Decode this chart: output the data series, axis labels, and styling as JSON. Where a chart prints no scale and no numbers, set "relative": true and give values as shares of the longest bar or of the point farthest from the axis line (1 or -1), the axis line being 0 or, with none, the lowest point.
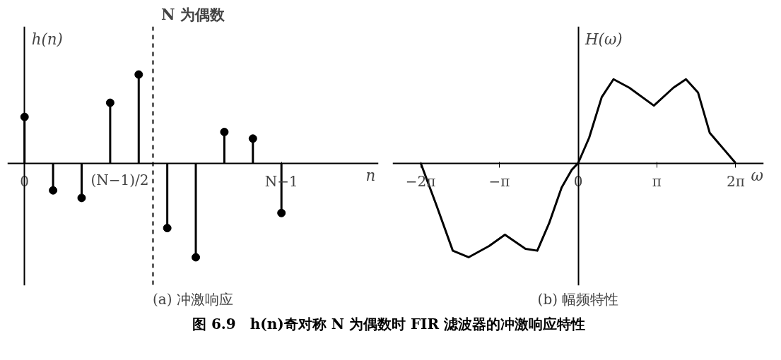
{
  "chart_data": [
    {
      "type": "lollipop",
      "title": "N 为偶数",
      "subtitle": "(a) 冲激响应",
      "xlabel": "n",
      "ylabel": "h(n)",
      "relative": true,
      "color": "#000000",
      "marker": "circle",
      "categories": [
        "0",
        null,
        null,
        null,
        null,
        null,
        null,
        null,
        null,
        "N−1"
      ],
      "values": [
        0.49,
        -0.29,
        -0.37,
        0.64,
        0.94,
        -0.69,
        -1,
        0.33,
        0.26,
        -0.53
      ],
      "annotations": [
        "(N−1)/2"
      ]
    },
    {
      "type": "line",
      "subtitle": "(b) 幅频特性",
      "xlabel": "ω",
      "ylabel": "H(ω)",
      "relative": true,
      "color": "#000000",
      "line_style": "solid",
      "x": [
        -6.28,
        -5.65,
        -5,
        -4.37,
        -3.55,
        -2.92,
        -2.1,
        -1.63,
        -1.16,
        -0.66,
        -0.25,
        0,
        0.44,
        0.94,
        1.41,
        2.04,
        3.02,
        3.8,
        4.3,
        4.78,
        5.25,
        6.28
      ],
      "values": [
        0,
        -0.45,
        -0.93,
        -1,
        -0.88,
        -0.76,
        -0.91,
        -0.93,
        -0.64,
        -0.26,
        -0.07,
        0,
        0.27,
        0.7,
        0.89,
        0.8,
        0.61,
        0.8,
        0.89,
        0.75,
        0.32,
        0
      ],
      "annotations": [
        "图 6.9　h(n)奇对称 N 为偶数时 FIR 滤波器的冲激响应特性"
      ],
      "xlim": [
        -7.4,
        7.4
      ],
      "xticks": [
        {
          "value": -6.2832,
          "label": "−2π"
        },
        {
          "value": -3.1416,
          "label": "−π"
        },
        0,
        {
          "value": 3.1416,
          "label": "π"
        },
        {
          "value": 6.2832,
          "label": "2π"
        }
      ]
    }
  ]
}
